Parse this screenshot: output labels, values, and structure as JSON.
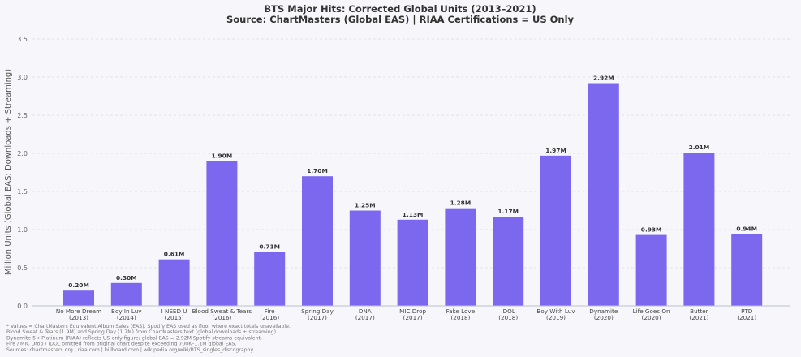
{
  "chart_data": {
    "type": "bar",
    "title": "BTS Major Hits: Corrected Global Units (2013–2021)",
    "subtitle": "Source: ChartMasters (Global EAS) | RIAA Certifications = US Only",
    "ylabel": "Million Units (Global EAS: Downloads + Streaming)",
    "xlabel": "",
    "ylim": [
      0,
      3.5
    ],
    "yticks": [
      "0.0",
      "0.5",
      "1.0",
      "1.5",
      "2.0",
      "2.5",
      "3.0",
      "3.5"
    ],
    "grid": true,
    "bar_color": "#7b68ee",
    "categories": [
      {
        "name": "No More Dream",
        "year": "(2013)"
      },
      {
        "name": "Boy In Luv",
        "year": "(2014)"
      },
      {
        "name": "I NEED U",
        "year": "(2015)"
      },
      {
        "name": "Blood Sweat & Tears",
        "year": "(2016)"
      },
      {
        "name": "Fire",
        "year": "(2016)"
      },
      {
        "name": "Spring Day",
        "year": "(2017)"
      },
      {
        "name": "DNA",
        "year": "(2017)"
      },
      {
        "name": "MIC Drop",
        "year": "(2017)"
      },
      {
        "name": "Fake Love",
        "year": "(2018)"
      },
      {
        "name": "IDOL",
        "year": "(2018)"
      },
      {
        "name": "Boy With Luv",
        "year": "(2019)"
      },
      {
        "name": "Dynamite",
        "year": "(2020)"
      },
      {
        "name": "Life Goes On",
        "year": "(2020)"
      },
      {
        "name": "Butter",
        "year": "(2021)"
      },
      {
        "name": "PTD",
        "year": "(2021)"
      }
    ],
    "values": [
      0.2,
      0.3,
      0.61,
      1.9,
      0.71,
      1.7,
      1.25,
      1.13,
      1.28,
      1.17,
      1.97,
      2.92,
      0.93,
      2.01,
      0.94
    ],
    "value_labels": [
      "0.20M",
      "0.30M",
      "0.61M",
      "1.90M",
      "0.71M",
      "1.70M",
      "1.25M",
      "1.13M",
      "1.28M",
      "1.17M",
      "1.97M",
      "2.92M",
      "0.93M",
      "2.01M",
      "0.94M"
    ]
  },
  "footnotes": [
    "* Values = ChartMasters Equivalent Album Sales (EAS). Spotify EAS used as floor where exact totals unavailable.",
    "  Blood Sweat & Tears (1.9M) and Spring Day (1.7M) from ChartMasters text (global downloads + streaming).",
    "  Dynamite 5× Platinum (RIAA) reflects US-only figure; global EAS = 2.92M Spotify streams equivalent.",
    "  Fire / MIC Drop / IDOL omitted from original chart despite exceeding 700K–1.1M global EAS.",
    "  Sources: chartmasters.org | riaa.com | billboard.com | wikipedia.org/wiki/BTS_singles_discography"
  ]
}
